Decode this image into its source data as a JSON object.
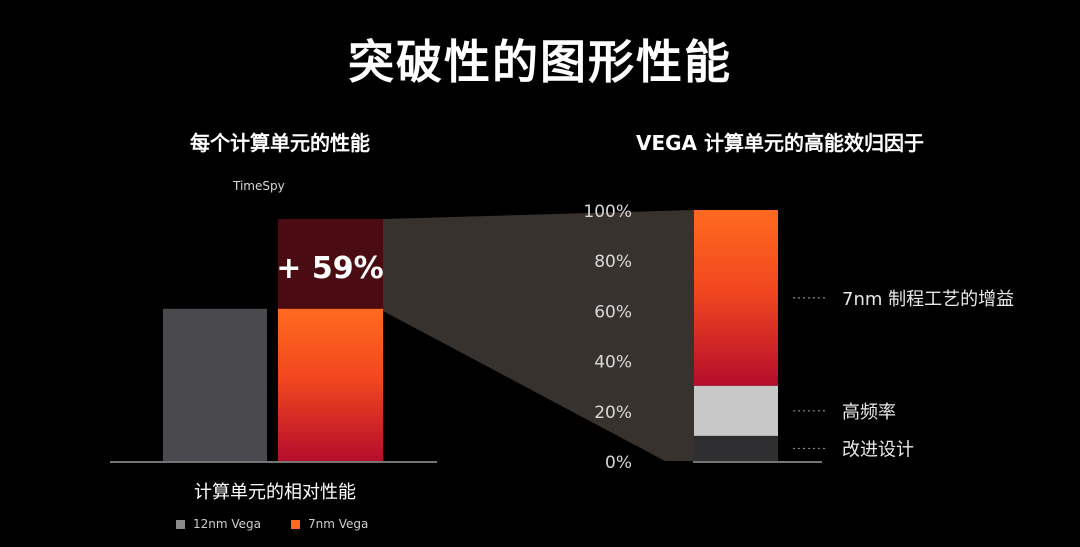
{
  "title": "突破性的图形性能",
  "colors": {
    "background": "#000000",
    "grey_bar": "#4a4a4e",
    "orange": "#ff6a1f",
    "red": "#c2102a",
    "dark_red": "#4a0b12",
    "light_grey": "#c8c8c8",
    "dark_grey": "#2f2f31",
    "funnel": "#3a3530"
  },
  "chart_data": [
    {
      "type": "bar",
      "title": "每个计算单元的性能",
      "benchmark": "TimeSpy",
      "xlabel": "计算单元的相对性能",
      "ylabel": "",
      "series": [
        {
          "name": "12nm Vega",
          "values": [
            1.0
          ]
        },
        {
          "name": "7nm Vega",
          "values": [
            1.59
          ]
        }
      ],
      "ylim": [
        0,
        1.59
      ],
      "annotation": "+ 59%",
      "legend_placement": "bottom"
    },
    {
      "type": "bar",
      "title": "VEGA 计算单元的高能效归因于",
      "ylim": [
        0,
        100
      ],
      "tick_labels": [
        "0%",
        "20%",
        "40%",
        "60%",
        "80%",
        "100%"
      ],
      "stacked_segments": [
        {
          "label": "改进设计",
          "value": 10
        },
        {
          "label": "高频率",
          "value": 20
        },
        {
          "label": "7nm 制程工艺的增益",
          "value": 70
        }
      ],
      "grid": false
    }
  ]
}
